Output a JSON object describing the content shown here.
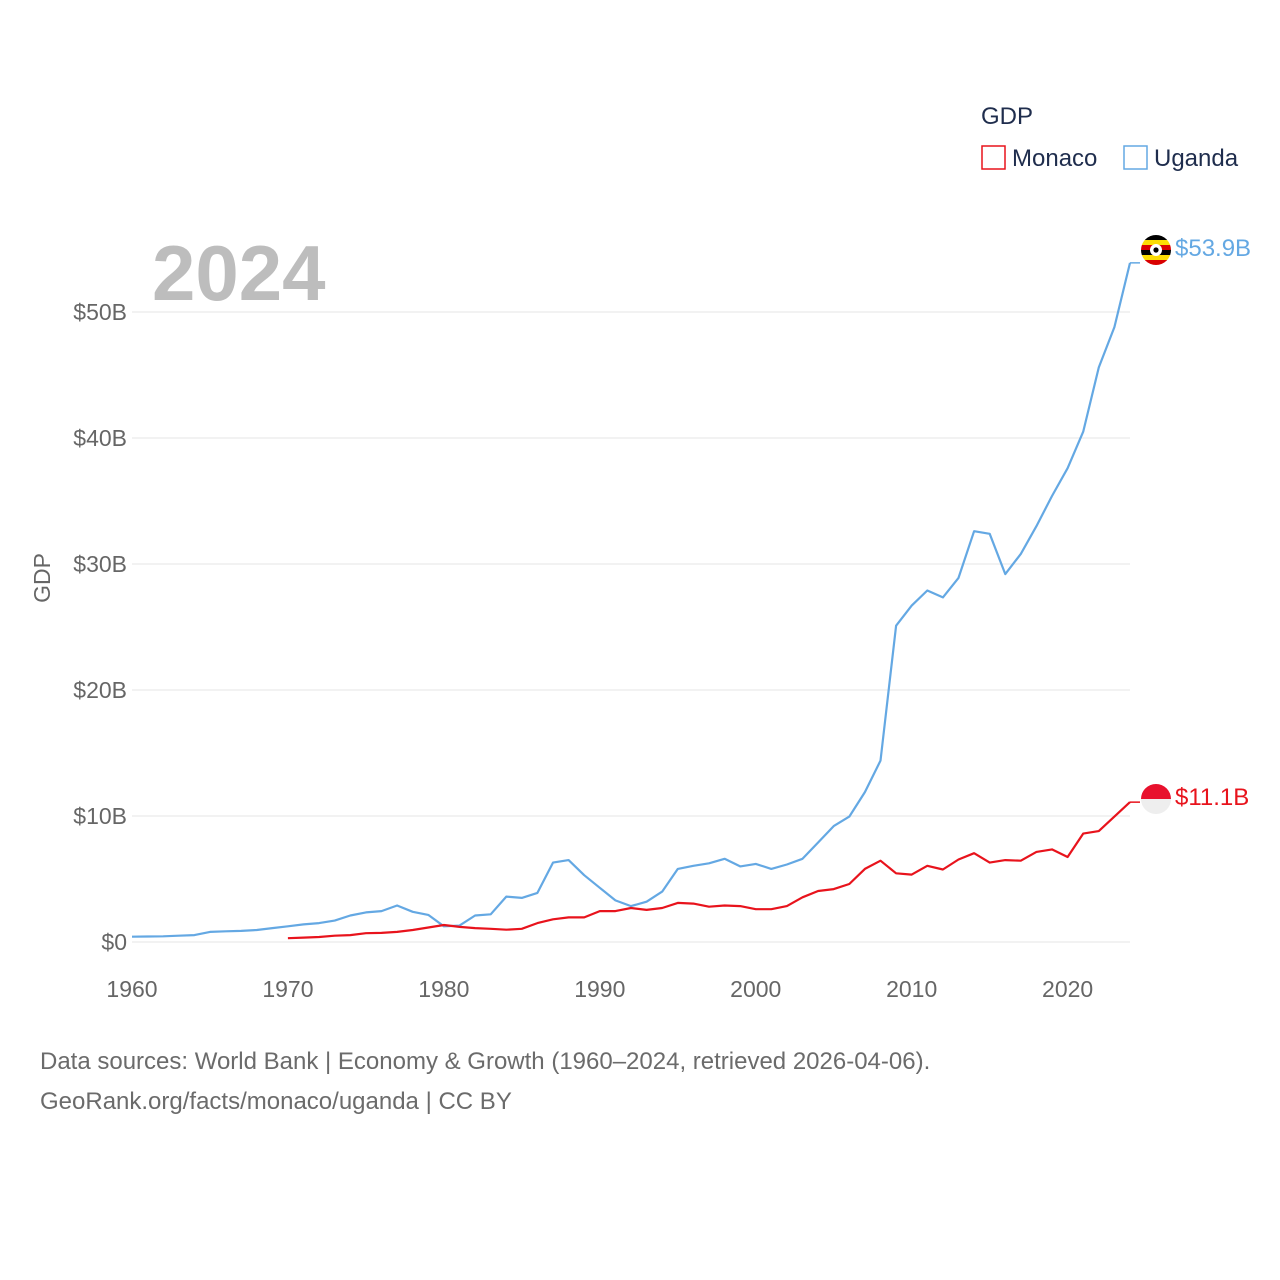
{
  "legend": {
    "title": "GDP",
    "items": [
      {
        "name": "Monaco",
        "color": "#e8131c"
      },
      {
        "name": "Uganda",
        "color": "#64a8e3"
      }
    ]
  },
  "year_label": "2024",
  "footer": {
    "line1": "Data sources: World Bank | Economy & Growth (1960–2024, retrieved 2026-04-06).",
    "line2": "GeoRank.org/facts/monaco/uganda | CC BY"
  },
  "flags": {
    "uganda": "uganda-flag-icon",
    "monaco": "monaco-flag-icon"
  },
  "chart_data": {
    "type": "line",
    "title": "GDP",
    "xlabel": "",
    "ylabel": "GDP",
    "xlim": [
      1960,
      2024
    ],
    "ylim": [
      0,
      55
    ],
    "x_ticks": [
      1960,
      1970,
      1980,
      1990,
      2000,
      2010,
      2020
    ],
    "x_tick_labels": [
      "1960",
      "1970",
      "1980",
      "1990",
      "2000",
      "2010",
      "2020"
    ],
    "y_ticks": [
      0,
      10,
      20,
      30,
      40,
      50
    ],
    "y_tick_labels": [
      "$0",
      "$10B",
      "$20B",
      "$30B",
      "$40B",
      "$50B"
    ],
    "series": [
      {
        "name": "Uganda",
        "color": "#64a8e3",
        "end_label": "$53.9B",
        "x": [
          1960,
          1961,
          1962,
          1963,
          1964,
          1965,
          1966,
          1967,
          1968,
          1969,
          1970,
          1971,
          1972,
          1973,
          1974,
          1975,
          1976,
          1977,
          1978,
          1979,
          1980,
          1981,
          1982,
          1983,
          1984,
          1985,
          1986,
          1987,
          1988,
          1989,
          1990,
          1991,
          1992,
          1993,
          1994,
          1995,
          1996,
          1997,
          1998,
          1999,
          2000,
          2001,
          2002,
          2003,
          2004,
          2005,
          2006,
          2007,
          2008,
          2009,
          2010,
          2011,
          2012,
          2013,
          2014,
          2015,
          2016,
          2017,
          2018,
          2019,
          2020,
          2021,
          2022,
          2023,
          2024
        ],
        "values": [
          0.42,
          0.44,
          0.45,
          0.5,
          0.55,
          0.8,
          0.85,
          0.88,
          0.95,
          1.1,
          1.25,
          1.4,
          1.5,
          1.7,
          2.1,
          2.35,
          2.45,
          2.9,
          2.4,
          2.15,
          1.25,
          1.3,
          2.1,
          2.2,
          3.6,
          3.5,
          3.9,
          6.3,
          6.5,
          5.3,
          4.3,
          3.3,
          2.85,
          3.2,
          4.0,
          5.8,
          6.05,
          6.25,
          6.6,
          6.0,
          6.2,
          5.8,
          6.15,
          6.6,
          7.9,
          9.2,
          9.95,
          11.9,
          14.4,
          25.1,
          26.7,
          27.9,
          27.35,
          28.9,
          32.6,
          32.4,
          29.2,
          30.8,
          33.0,
          35.4,
          37.6,
          40.5,
          45.6,
          48.8,
          53.9
        ]
      },
      {
        "name": "Monaco",
        "color": "#e8131c",
        "end_label": "$11.1B",
        "x": [
          1970,
          1971,
          1972,
          1973,
          1974,
          1975,
          1976,
          1977,
          1978,
          1979,
          1980,
          1981,
          1982,
          1983,
          1984,
          1985,
          1986,
          1987,
          1988,
          1989,
          1990,
          1991,
          1992,
          1993,
          1994,
          1995,
          1996,
          1997,
          1998,
          1999,
          2000,
          2001,
          2002,
          2003,
          2004,
          2005,
          2006,
          2007,
          2008,
          2009,
          2010,
          2011,
          2012,
          2013,
          2014,
          2015,
          2016,
          2017,
          2018,
          2019,
          2020,
          2021,
          2022,
          2023,
          2024
        ],
        "values": [
          0.3,
          0.35,
          0.4,
          0.5,
          0.55,
          0.7,
          0.72,
          0.8,
          0.95,
          1.15,
          1.35,
          1.2,
          1.1,
          1.05,
          0.98,
          1.05,
          1.5,
          1.8,
          1.95,
          1.95,
          2.45,
          2.45,
          2.7,
          2.55,
          2.7,
          3.1,
          3.05,
          2.8,
          2.9,
          2.85,
          2.6,
          2.6,
          2.85,
          3.55,
          4.05,
          4.2,
          4.6,
          5.8,
          6.45,
          5.45,
          5.35,
          6.05,
          5.75,
          6.55,
          7.05,
          6.3,
          6.5,
          6.45,
          7.15,
          7.35,
          6.75,
          8.6,
          8.8,
          9.95,
          11.1
        ]
      }
    ]
  }
}
